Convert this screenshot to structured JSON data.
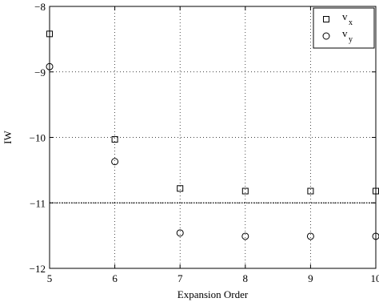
{
  "chart_data": {
    "type": "scatter",
    "title": "",
    "xlabel": "Expansion Order",
    "ylabel": "IW",
    "xlim": [
      5,
      10
    ],
    "ylim": [
      -12,
      -8
    ],
    "x_ticks": [
      "5",
      "6",
      "7",
      "8",
      "9",
      "10"
    ],
    "y_ticks": [
      "-12",
      "-11",
      "-10",
      "-9",
      "-8"
    ],
    "grid": true,
    "legend_position": "top-right",
    "x": [
      5,
      6,
      7,
      8,
      9,
      10
    ],
    "series": [
      {
        "name": "v",
        "subscript": "x",
        "marker": "square",
        "values": [
          -8.42,
          -10.03,
          -10.78,
          -10.82,
          -10.82,
          -10.82
        ]
      },
      {
        "name": "v",
        "subscript": "y",
        "marker": "circle",
        "values": [
          -8.92,
          -10.37,
          -11.46,
          -11.51,
          -11.51,
          -11.51
        ]
      }
    ],
    "reference_line": {
      "y": -11,
      "style": "dotted"
    }
  }
}
